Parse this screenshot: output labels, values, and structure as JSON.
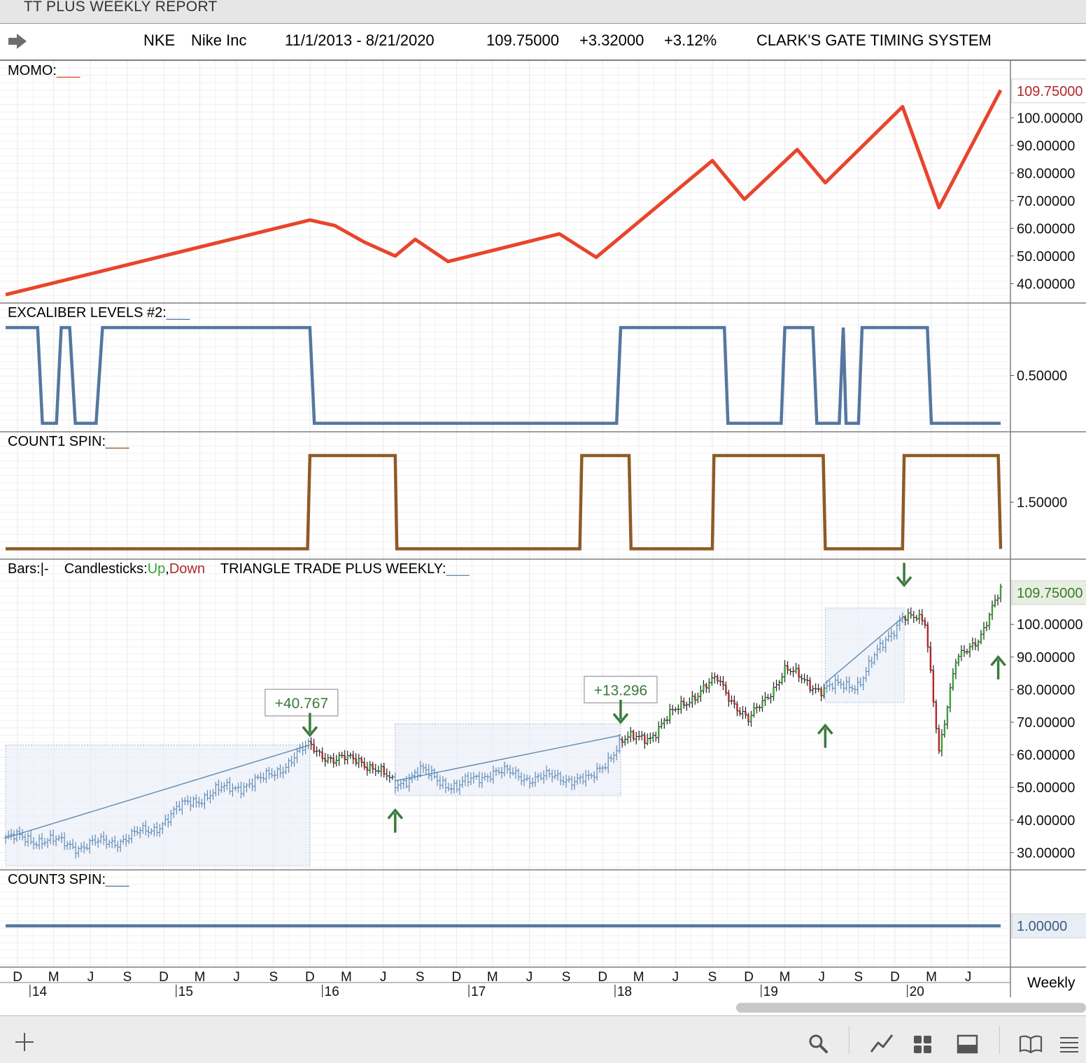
{
  "window": {
    "title": "TT PLUS WEEKLY REPORT"
  },
  "header": {
    "symbol": "NKE",
    "company": "Nike Inc",
    "date_range": "11/1/2013 - 8/21/2020",
    "last": "109.75000",
    "change": "+3.32000",
    "change_pct": "+3.12%",
    "system": "CLARK'S GATE TIMING SYSTEM"
  },
  "colors": {
    "momo": "#e8452c",
    "excaliber": "#5577a1",
    "count1": "#8f5a25",
    "count3": "#5577a1",
    "up": "#3aa336",
    "down": "#b2262a",
    "triangle": "#5f8ab5",
    "signal_arrow": "#3b7a3b",
    "last_price_box": "#e7efe1",
    "last_price_text": "#3a7a2c",
    "momo_last_text": "#b2262a"
  },
  "chart_data": [
    {
      "name": "momo",
      "type": "line",
      "label": "MOMO:",
      "legend_swatch": "___",
      "ylim": [
        35,
        113
      ],
      "y_ticks": [
        "100.00000",
        "90.00000",
        "80.00000",
        "70.00000",
        "60.00000",
        "50.00000",
        "40.00000"
      ],
      "last_value_label": "109.75000",
      "points": [
        {
          "x": "2013-11-01",
          "y": 36
        },
        {
          "x": "2015-12-01",
          "y": 63
        },
        {
          "x": "2016-02-01",
          "y": 61
        },
        {
          "x": "2016-04-15",
          "y": 55
        },
        {
          "x": "2016-07-01",
          "y": 50
        },
        {
          "x": "2016-08-20",
          "y": 56
        },
        {
          "x": "2016-11-10",
          "y": 48
        },
        {
          "x": "2017-08-15",
          "y": 58
        },
        {
          "x": "2017-11-15",
          "y": 49.5
        },
        {
          "x": "2018-09-01",
          "y": 84.5
        },
        {
          "x": "2018-11-20",
          "y": 70.5
        },
        {
          "x": "2019-04-01",
          "y": 88.5
        },
        {
          "x": "2019-06-10",
          "y": 76.5
        },
        {
          "x": "2019-12-20",
          "y": 104
        },
        {
          "x": "2020-03-20",
          "y": 67.5
        },
        {
          "x": "2020-08-21",
          "y": 110
        }
      ]
    },
    {
      "name": "excaliber",
      "type": "step",
      "label": "EXCALIBER LEVELS #2:",
      "legend_swatch": "___",
      "ylim": [
        -0.03,
        1.03
      ],
      "y_ticks": [
        "0.50000"
      ],
      "points": [
        {
          "x": "2013-11-01",
          "y": 1
        },
        {
          "x": "2014-01-20",
          "y": 1
        },
        {
          "x": "2014-02-01",
          "y": 0
        },
        {
          "x": "2014-03-08",
          "y": 0
        },
        {
          "x": "2014-03-20",
          "y": 1
        },
        {
          "x": "2014-04-10",
          "y": 1
        },
        {
          "x": "2014-04-24",
          "y": 0
        },
        {
          "x": "2014-06-15",
          "y": 0
        },
        {
          "x": "2014-07-01",
          "y": 1
        },
        {
          "x": "2015-12-01",
          "y": 1
        },
        {
          "x": "2015-12-12",
          "y": 0
        },
        {
          "x": "2018-01-05",
          "y": 0
        },
        {
          "x": "2018-01-15",
          "y": 1
        },
        {
          "x": "2018-10-01",
          "y": 1
        },
        {
          "x": "2018-10-10",
          "y": 0
        },
        {
          "x": "2019-02-20",
          "y": 0
        },
        {
          "x": "2019-03-01",
          "y": 1
        },
        {
          "x": "2019-05-10",
          "y": 1
        },
        {
          "x": "2019-05-20",
          "y": 0
        },
        {
          "x": "2019-07-15",
          "y": 0
        },
        {
          "x": "2019-07-25",
          "y": 1
        },
        {
          "x": "2019-08-01",
          "y": 0
        },
        {
          "x": "2019-09-01",
          "y": 0
        },
        {
          "x": "2019-09-10",
          "y": 1
        },
        {
          "x": "2020-02-20",
          "y": 1
        },
        {
          "x": "2020-03-01",
          "y": 0
        },
        {
          "x": "2020-08-21",
          "y": 0
        }
      ]
    },
    {
      "name": "count1",
      "type": "step",
      "label": "COUNT1 SPIN:",
      "legend_swatch": "___",
      "ylim": [
        0.92,
        2.03
      ],
      "y_ticks": [
        "1.50000"
      ],
      "points": [
        {
          "x": "2013-11-01",
          "y": 1
        },
        {
          "x": "2015-11-25",
          "y": 1
        },
        {
          "x": "2015-12-01",
          "y": 2
        },
        {
          "x": "2016-07-01",
          "y": 2
        },
        {
          "x": "2016-07-05",
          "y": 1
        },
        {
          "x": "2017-10-05",
          "y": 1
        },
        {
          "x": "2017-10-10",
          "y": 2
        },
        {
          "x": "2018-02-05",
          "y": 2
        },
        {
          "x": "2018-02-10",
          "y": 1
        },
        {
          "x": "2018-09-01",
          "y": 1
        },
        {
          "x": "2018-09-05",
          "y": 2
        },
        {
          "x": "2019-06-05",
          "y": 2
        },
        {
          "x": "2019-06-10",
          "y": 1
        },
        {
          "x": "2019-12-20",
          "y": 1
        },
        {
          "x": "2019-12-24",
          "y": 2
        },
        {
          "x": "2020-08-15",
          "y": 2
        },
        {
          "x": "2020-08-21",
          "y": 1
        }
      ]
    },
    {
      "name": "price",
      "type": "ohlc",
      "legend": {
        "bars_label": "Bars:",
        "bars_symbol": "|-",
        "candles_label": "Candlesticks:",
        "up_label": "Up",
        "comma": ",",
        "down_label": "Down",
        "triangle_label": "TRIANGLE TRADE PLUS WEEKLY:",
        "triangle_swatch": "___"
      },
      "ylim": [
        26,
        114
      ],
      "y_ticks": [
        "100.00000",
        "90.00000",
        "80.00000",
        "70.00000",
        "60.00000",
        "50.00000",
        "40.00000",
        "30.00000"
      ],
      "last_value_label": "109.75000",
      "close_path": [
        {
          "x": "2013-11-01",
          "y": 34.5
        },
        {
          "x": "2014-02-01",
          "y": 34
        },
        {
          "x": "2014-05-01",
          "y": 32
        },
        {
          "x": "2014-08-01",
          "y": 33.5
        },
        {
          "x": "2014-11-01",
          "y": 37
        },
        {
          "x": "2015-02-01",
          "y": 45.5
        },
        {
          "x": "2015-05-01",
          "y": 49.5
        },
        {
          "x": "2015-08-01",
          "y": 52
        },
        {
          "x": "2015-10-01",
          "y": 57
        },
        {
          "x": "2015-12-01",
          "y": 63
        },
        {
          "x": "2016-02-01",
          "y": 58
        },
        {
          "x": "2016-04-01",
          "y": 59
        },
        {
          "x": "2016-07-01",
          "y": 51
        },
        {
          "x": "2016-09-01",
          "y": 55
        },
        {
          "x": "2016-12-01",
          "y": 50
        },
        {
          "x": "2017-03-01",
          "y": 55
        },
        {
          "x": "2017-06-01",
          "y": 53
        },
        {
          "x": "2017-09-01",
          "y": 53
        },
        {
          "x": "2017-11-01",
          "y": 52
        },
        {
          "x": "2018-01-15",
          "y": 64
        },
        {
          "x": "2018-04-01",
          "y": 66
        },
        {
          "x": "2018-07-01",
          "y": 77
        },
        {
          "x": "2018-09-15",
          "y": 83
        },
        {
          "x": "2018-12-01",
          "y": 70
        },
        {
          "x": "2019-03-01",
          "y": 86
        },
        {
          "x": "2019-06-01",
          "y": 80
        },
        {
          "x": "2019-09-01",
          "y": 82
        },
        {
          "x": "2019-12-20",
          "y": 103
        },
        {
          "x": "2020-02-15",
          "y": 100
        },
        {
          "x": "2020-03-20",
          "y": 62
        },
        {
          "x": "2020-05-01",
          "y": 88
        },
        {
          "x": "2020-07-01",
          "y": 97
        },
        {
          "x": "2020-08-21",
          "y": 109.75
        }
      ],
      "triangles": [
        {
          "start": "2013-11-01",
          "end": "2015-12-01",
          "low": 26,
          "high": 63,
          "line_start": 34.5,
          "line_end": 63
        },
        {
          "start": "2016-07-01",
          "end": "2018-01-15",
          "low": 47.5,
          "high": 69.5,
          "line_start": 52,
          "line_end": 66
        },
        {
          "start": "2019-06-10",
          "end": "2019-12-24",
          "low": 76,
          "high": 105,
          "line_start": 82,
          "line_end": 102.5
        }
      ],
      "trade_labels": [
        {
          "x": "2015-11-10",
          "value_y": 76,
          "text": "+40.767"
        },
        {
          "x": "2018-01-15",
          "value_y": 80,
          "text": "+13.296"
        }
      ],
      "signals": [
        {
          "x": "2015-12-01",
          "dir": "down",
          "y": 66
        },
        {
          "x": "2016-07-01",
          "dir": "up",
          "y": 43
        },
        {
          "x": "2018-01-15",
          "dir": "down",
          "y": 70
        },
        {
          "x": "2019-06-10",
          "dir": "up",
          "y": 69
        },
        {
          "x": "2019-12-24",
          "dir": "down",
          "y": 112
        },
        {
          "x": "2020-08-15",
          "dir": "up",
          "y": 90
        }
      ]
    },
    {
      "name": "count3",
      "type": "line",
      "label": "COUNT3 SPIN:",
      "legend_swatch": "___",
      "ylim": [
        0.5,
        1.5
      ],
      "y_ticks": [],
      "last_value_label": "1.00000",
      "points": [
        {
          "x": "2013-11-01",
          "y": 1
        },
        {
          "x": "2020-08-21",
          "y": 1
        }
      ]
    }
  ],
  "time_axis": {
    "months": [
      {
        "x": "2013-12-01",
        "label": "D"
      },
      {
        "x": "2014-03-01",
        "label": "M"
      },
      {
        "x": "2014-06-01",
        "label": "J"
      },
      {
        "x": "2014-09-01",
        "label": "S"
      },
      {
        "x": "2014-12-01",
        "label": "D"
      },
      {
        "x": "2015-03-01",
        "label": "M"
      },
      {
        "x": "2015-06-01",
        "label": "J"
      },
      {
        "x": "2015-09-01",
        "label": "S"
      },
      {
        "x": "2015-12-01",
        "label": "D"
      },
      {
        "x": "2016-03-01",
        "label": "M"
      },
      {
        "x": "2016-06-01",
        "label": "J"
      },
      {
        "x": "2016-09-01",
        "label": "S"
      },
      {
        "x": "2016-12-01",
        "label": "D"
      },
      {
        "x": "2017-03-01",
        "label": "M"
      },
      {
        "x": "2017-06-01",
        "label": "J"
      },
      {
        "x": "2017-09-01",
        "label": "S"
      },
      {
        "x": "2017-12-01",
        "label": "D"
      },
      {
        "x": "2018-03-01",
        "label": "M"
      },
      {
        "x": "2018-06-01",
        "label": "J"
      },
      {
        "x": "2018-09-01",
        "label": "S"
      },
      {
        "x": "2018-12-01",
        "label": "D"
      },
      {
        "x": "2019-03-01",
        "label": "M"
      },
      {
        "x": "2019-06-01",
        "label": "J"
      },
      {
        "x": "2019-09-01",
        "label": "S"
      },
      {
        "x": "2019-12-01",
        "label": "D"
      },
      {
        "x": "2020-03-01",
        "label": "M"
      },
      {
        "x": "2020-06-01",
        "label": "J"
      }
    ],
    "years": [
      {
        "x": "2014-01-01",
        "label": "14"
      },
      {
        "x": "2015-01-01",
        "label": "15"
      },
      {
        "x": "2016-01-01",
        "label": "16"
      },
      {
        "x": "2017-01-01",
        "label": "17"
      },
      {
        "x": "2018-01-01",
        "label": "18"
      },
      {
        "x": "2019-01-01",
        "label": "19"
      },
      {
        "x": "2020-01-01",
        "label": "20"
      }
    ],
    "range": [
      "2013-11-01",
      "2020-08-21"
    ],
    "period_label": "Weekly"
  },
  "toolbar": {
    "add_icon": "plus-icon",
    "search_icon": "search-icon",
    "chart_icon": "line-chart-icon",
    "grid_icon": "grid-icon",
    "panel_icon": "panel-icon",
    "book_icon": "book-icon",
    "menu_icon": "menu-icon"
  }
}
